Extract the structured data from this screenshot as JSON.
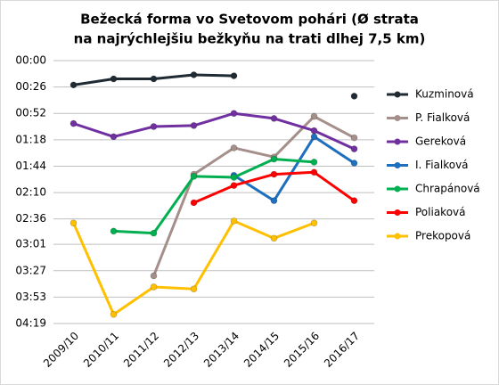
{
  "chart_data": {
    "type": "line",
    "title": [
      "Bežecká forma vo Svetovom pohári (Ø strata",
      "na najrýchlejšiu bežkyňu na trati dlhej 7,5 km)"
    ],
    "categories": [
      "2009/10",
      "2010/11",
      "2011/12",
      "2012/13",
      "2013/14",
      "2014/15",
      "2015/16",
      "2016/17"
    ],
    "ylim": [
      0,
      259
    ],
    "y_inverted": true,
    "grid": true,
    "legend": "right",
    "yticks": [
      {
        "value": 0,
        "label": "00:00"
      },
      {
        "value": 26,
        "label": "00:26"
      },
      {
        "value": 52,
        "label": "00:52"
      },
      {
        "value": 78,
        "label": "01:18"
      },
      {
        "value": 104,
        "label": "01:44"
      },
      {
        "value": 130,
        "label": "02:10"
      },
      {
        "value": 156,
        "label": "02:36"
      },
      {
        "value": 181,
        "label": "03:01"
      },
      {
        "value": 207,
        "label": "03:27"
      },
      {
        "value": 233,
        "label": "03:53"
      },
      {
        "value": 259,
        "label": "04:19"
      }
    ],
    "series": [
      {
        "name": "Kuzminová",
        "color": "#1f2a33",
        "values": [
          24,
          18,
          18,
          14,
          15,
          null,
          null,
          35
        ]
      },
      {
        "name": "P. Fialková",
        "color": "#a58f8a",
        "values": [
          null,
          null,
          212,
          112,
          86,
          95,
          55,
          76
        ]
      },
      {
        "name": "Gereková",
        "color": "#7030a0",
        "values": [
          62,
          75,
          65,
          64,
          52,
          57,
          69,
          87
        ]
      },
      {
        "name": "I. Fialková",
        "color": "#1f6fbf",
        "values": [
          null,
          null,
          null,
          null,
          113,
          138,
          75,
          101
        ]
      },
      {
        "name": "Chrapánová",
        "color": "#00b050",
        "values": [
          null,
          168,
          170,
          114,
          115,
          97,
          100,
          null
        ]
      },
      {
        "name": "Poliaková",
        "color": "#ff0000",
        "values": [
          null,
          null,
          null,
          140,
          123,
          112,
          110,
          138
        ]
      },
      {
        "name": "Prekopová",
        "color": "#ffc000",
        "values": [
          160,
          250,
          223,
          225,
          158,
          175,
          160,
          null
        ]
      }
    ]
  }
}
